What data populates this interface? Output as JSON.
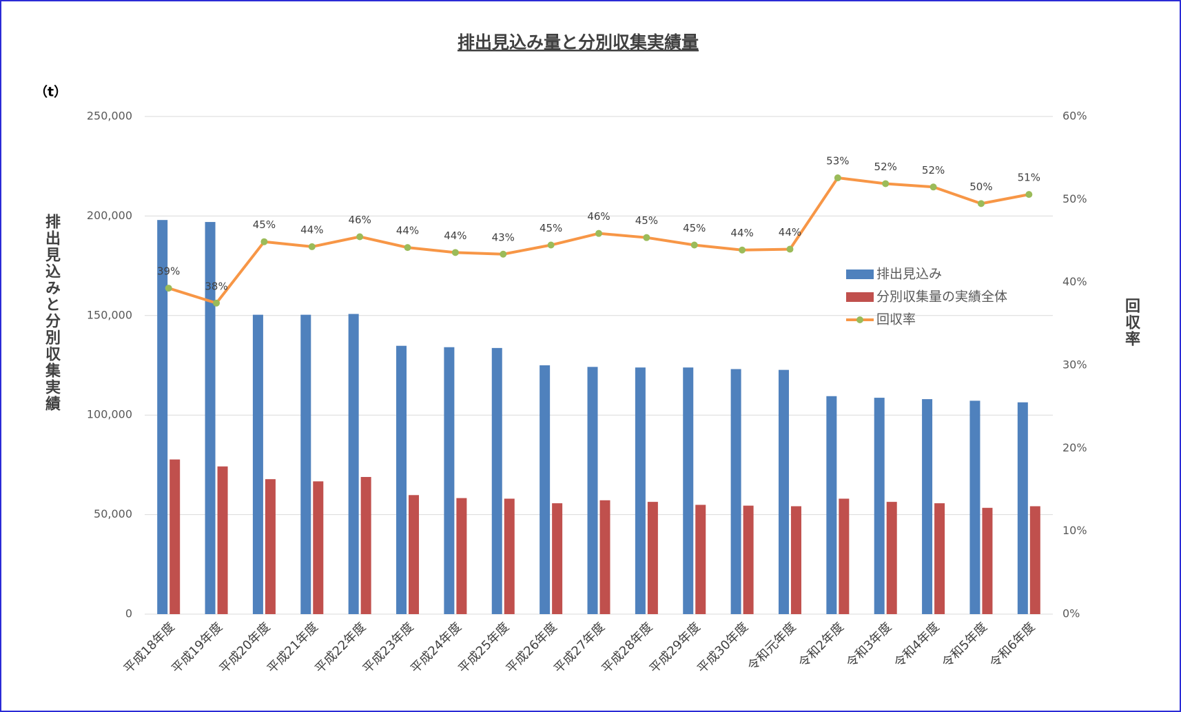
{
  "chart_data": {
    "type": "bar-line",
    "title": "排出見込み量と分別収集実績量",
    "unit_label": "（t）",
    "y_title": "排出見込みと分別収集実績",
    "y2_title": "回収率",
    "categories": [
      "平成18年度",
      "平成19年度",
      "平成20年度",
      "平成21年度",
      "平成22年度",
      "平成23年度",
      "平成24年度",
      "平成25年度",
      "平成26年度",
      "平成27年度",
      "平成28年度",
      "平成29年度",
      "平成30年度",
      "令和元年度",
      "令和2年度",
      "令和3年度",
      "令和4年度",
      "令和5年度",
      "令和6年度"
    ],
    "series": [
      {
        "name": "排出見込み",
        "type": "bar",
        "color": "#4f81bd",
        "values": [
          198000,
          197000,
          150400,
          150400,
          150800,
          134800,
          134100,
          133700,
          125000,
          124200,
          123900,
          123900,
          123100,
          122700,
          109500,
          108700,
          108000,
          107200,
          106400
        ]
      },
      {
        "name": "分別収集量の実績全体",
        "type": "bar",
        "color": "#c0504d",
        "values": [
          77700,
          74200,
          67800,
          66700,
          68900,
          59800,
          58300,
          58000,
          55700,
          57200,
          56400,
          54900,
          54500,
          54200,
          58000,
          56400,
          55700,
          53400,
          54200
        ]
      },
      {
        "name": "回収率",
        "type": "line",
        "axis": "y2",
        "color": "#f79646",
        "marker_color": "#9bbb59",
        "values": [
          39.3,
          37.5,
          44.9,
          44.3,
          45.5,
          44.2,
          43.6,
          43.4,
          44.5,
          45.9,
          45.4,
          44.5,
          43.9,
          44.0,
          52.6,
          51.9,
          51.5,
          49.5,
          50.6
        ],
        "value_labels": [
          "39%",
          "38%",
          "45%",
          "44%",
          "46%",
          "44%",
          "44%",
          "43%",
          "45%",
          "46%",
          "45%",
          "45%",
          "44%",
          "44%",
          "53%",
          "52%",
          "52%",
          "50%",
          "51%"
        ]
      }
    ],
    "ylim": [
      0,
      250000
    ],
    "yticks": [
      0,
      {
        "value": 50000,
        "label": "50,000"
      },
      {
        "value": 100000,
        "label": "100,000"
      },
      {
        "value": 150000,
        "label": "150,000"
      },
      {
        "value": 200000,
        "label": "200,000"
      },
      {
        "value": 250000,
        "label": "250,000"
      }
    ],
    "y2lim": [
      0,
      60
    ],
    "y2ticks": [
      {
        "value": 0,
        "label": "0%"
      },
      {
        "value": 10,
        "label": "10%"
      },
      {
        "value": 20,
        "label": "20%"
      },
      {
        "value": 30,
        "label": "30%"
      },
      {
        "value": 40,
        "label": "40%"
      },
      {
        "value": 50,
        "label": "50%"
      },
      {
        "value": 60,
        "label": "60%"
      }
    ],
    "grid": true,
    "legend": "right"
  }
}
